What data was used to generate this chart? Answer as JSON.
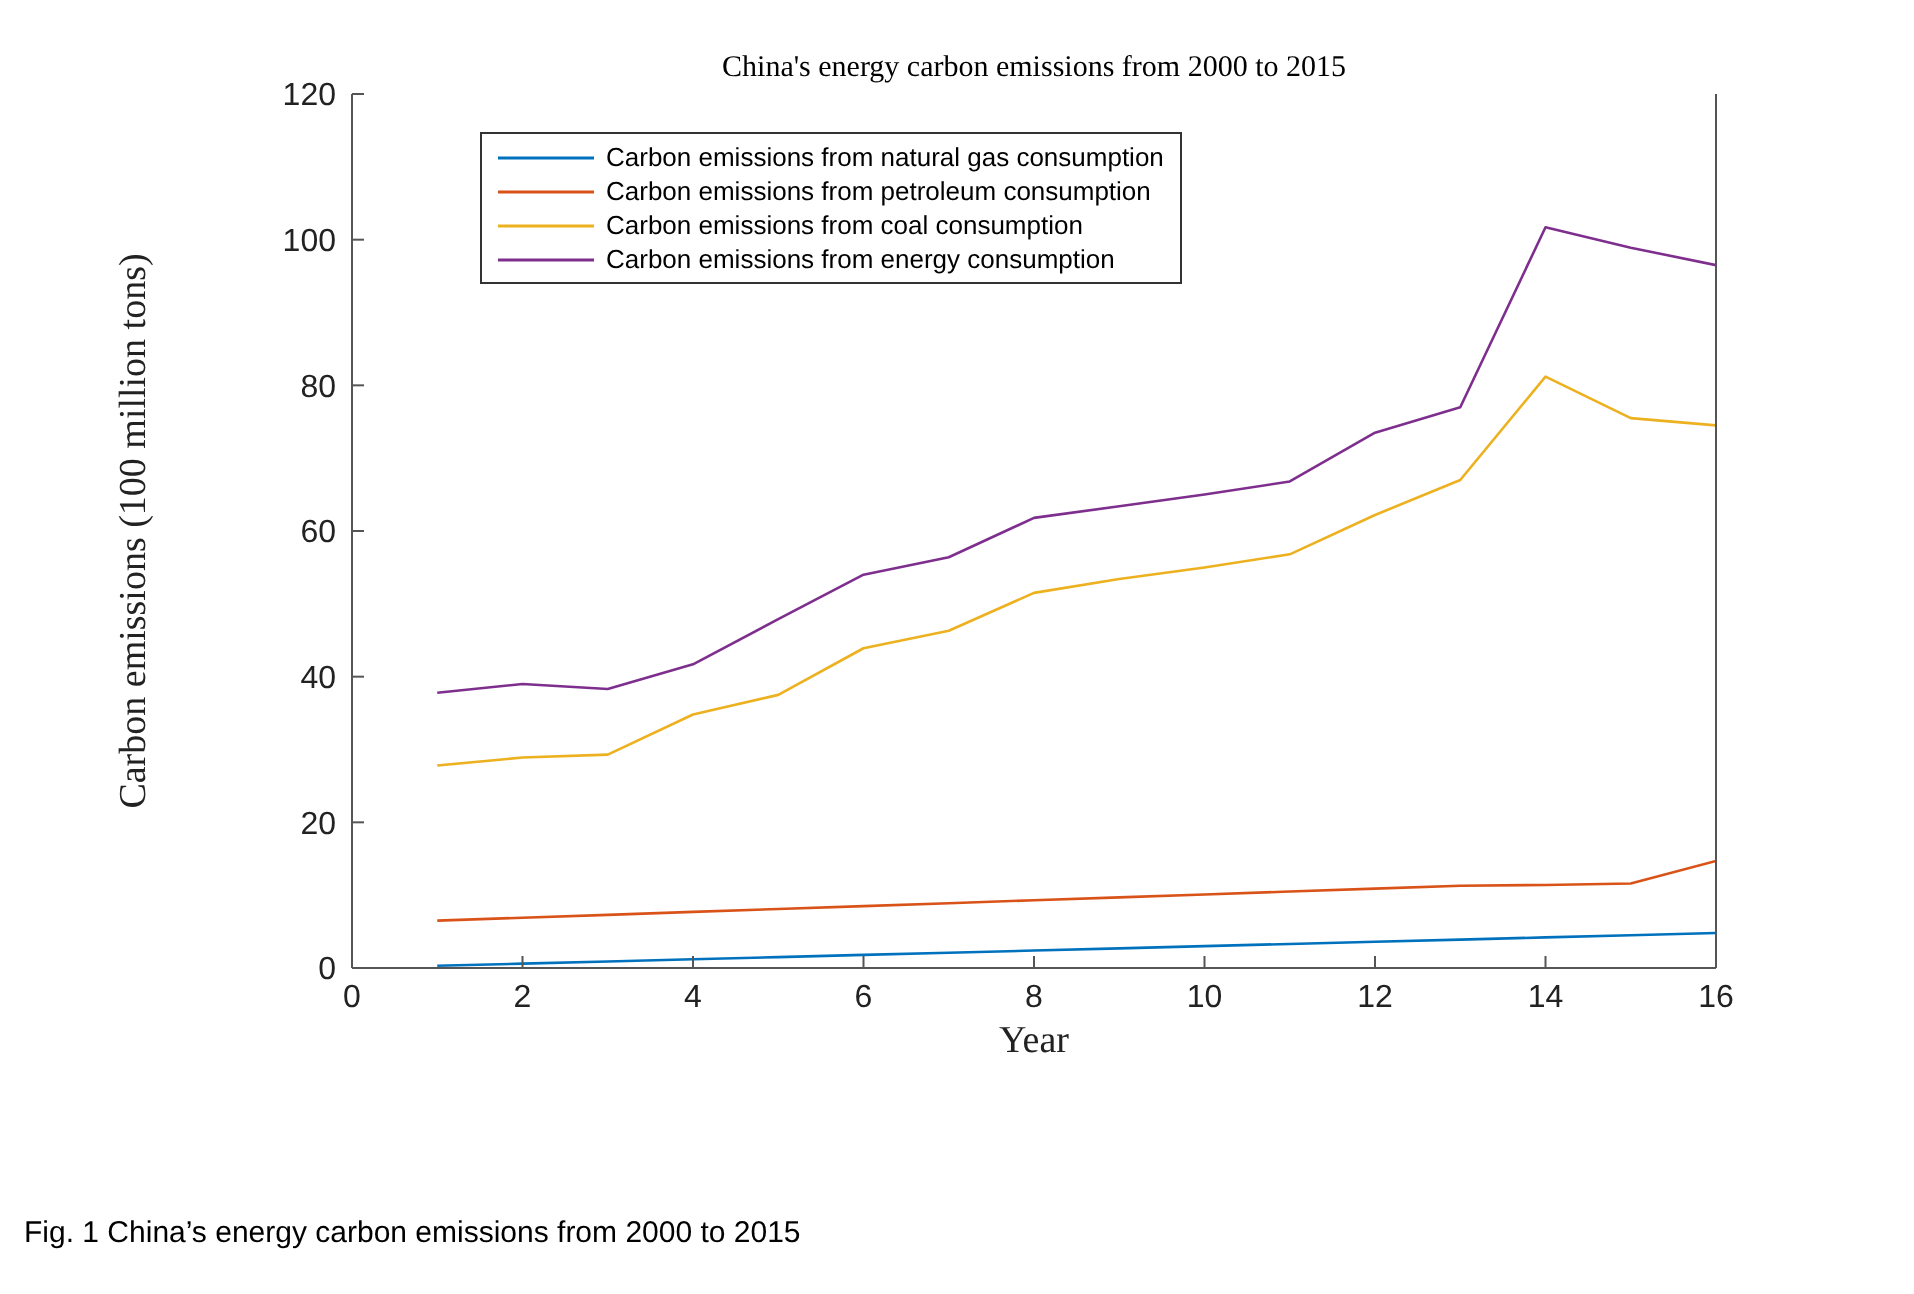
{
  "chart_data": {
    "type": "line",
    "title": "China's energy carbon emissions from 2000 to 2015",
    "xlabel": "Year",
    "ylabel": "Carbon emissions (100 million tons)",
    "x": [
      1,
      2,
      3,
      4,
      5,
      6,
      7,
      8,
      9,
      10,
      11,
      12,
      13,
      14,
      15,
      16
    ],
    "xlim": [
      0,
      16
    ],
    "xticks": [
      0,
      2,
      4,
      6,
      8,
      10,
      12,
      14,
      16
    ],
    "ylim": [
      0,
      120
    ],
    "yticks": [
      0,
      20,
      40,
      60,
      80,
      100,
      120
    ],
    "series": [
      {
        "name": "Carbon emissions from natural gas consumption",
        "color": "#0072bd",
        "values": [
          0.3,
          0.6,
          0.9,
          1.2,
          1.5,
          1.8,
          2.1,
          2.4,
          2.7,
          3.0,
          3.3,
          3.6,
          3.9,
          4.2,
          4.5,
          4.8
        ]
      },
      {
        "name": "Carbon emissions from petroleum consumption",
        "color": "#d95319",
        "values": [
          6.5,
          6.9,
          7.3,
          7.7,
          8.1,
          8.5,
          8.9,
          9.3,
          9.7,
          10.1,
          10.5,
          10.9,
          11.3,
          11.4,
          11.6,
          14.7
        ]
      },
      {
        "name": "Carbon emissions from coal consumption",
        "color": "#edb120",
        "values": [
          27.8,
          28.9,
          29.3,
          34.8,
          37.5,
          43.9,
          46.3,
          51.5,
          53.4,
          55,
          56.8,
          62.2,
          67,
          81.2,
          75.5,
          74.5
        ]
      },
      {
        "name": "Carbon emissions from energy consumption",
        "color": "#7e2f8e",
        "values": [
          37.8,
          39,
          38.3,
          41.7,
          47.9,
          54,
          56.4,
          61.8,
          63.4,
          65,
          66.8,
          73.5,
          77,
          101.7,
          98.9,
          96.5
        ]
      }
    ],
    "legend": "top left",
    "grid": false,
    "marker": "none",
    "line_style": "solid",
    "annotations": [
      "Fig. 1  China’s energy carbon emissions from 2000 to 2015"
    ]
  }
}
